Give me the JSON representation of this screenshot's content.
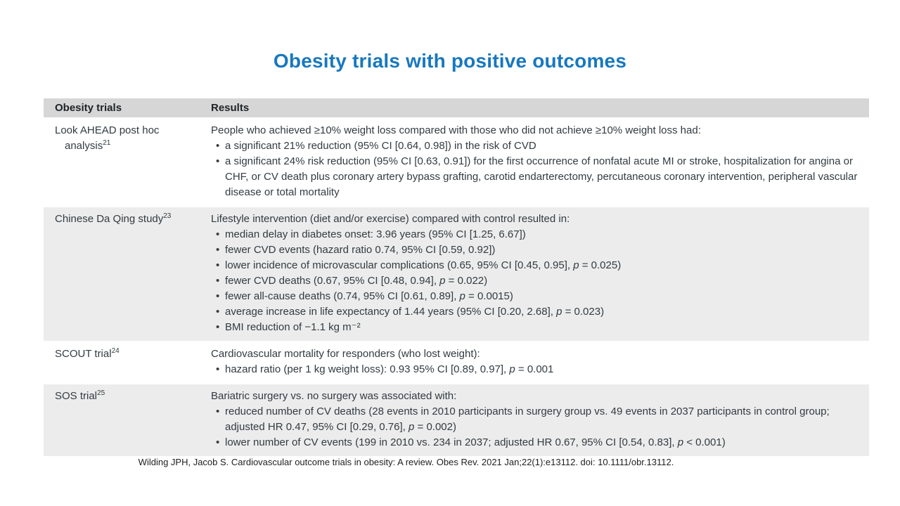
{
  "title": "Obesity trials with positive outcomes",
  "table": {
    "headers": [
      "Obesity trials",
      "Results"
    ],
    "rows": [
      {
        "trial_lines": [
          "Look AHEAD post hoc",
          "analysis"
        ],
        "trial_sup": "21",
        "shaded": false,
        "intro": "People who achieved ≥10% weight loss compared with those who did not achieve ≥10% weight loss had:",
        "bullets": [
          "a significant 21% reduction (95% CI [0.64, 0.98]) in the risk of CVD",
          "a significant 24% risk reduction (95% CI [0.63, 0.91]) for the first occurrence of nonfatal acute MI or stroke, hospitalization for angina or CHF, or CV death plus coronary artery bypass grafting, carotid endarterectomy, percutaneous coronary intervention, peripheral vascular disease or total mortality"
        ]
      },
      {
        "trial_lines": [
          "Chinese Da Qing study"
        ],
        "trial_sup": "23",
        "shaded": true,
        "intro": "Lifestyle intervention (diet and/or exercise) compared with control resulted in:",
        "bullets": [
          "median delay in diabetes onset: 3.96 years (95% CI [1.25, 6.67])",
          "fewer CVD events (hazard ratio 0.74, 95% CI [0.59, 0.92])",
          "lower incidence of microvascular complications (0.65, 95% CI [0.45, 0.95], p = 0.025)",
          "fewer CVD deaths (0.67, 95% CI [0.48, 0.94], p = 0.022)",
          "fewer all-cause deaths (0.74, 95% CI [0.61, 0.89], p = 0.0015)",
          "average increase in life expectancy of 1.44 years (95% CI [0.20, 2.68], p = 0.023)",
          "BMI reduction of −1.1 kg m⁻²"
        ]
      },
      {
        "trial_lines": [
          "SCOUT trial"
        ],
        "trial_sup": "24",
        "shaded": false,
        "intro": "Cardiovascular mortality for responders (who lost weight):",
        "bullets": [
          "hazard ratio (per 1 kg weight loss): 0.93 95% CI [0.89, 0.97], p = 0.001"
        ]
      },
      {
        "trial_lines": [
          "SOS trial"
        ],
        "trial_sup": "25",
        "shaded": true,
        "intro": "Bariatric surgery vs. no surgery was associated with:",
        "bullets": [
          "reduced number of CV deaths (28 events in 2010 participants in surgery group vs. 49 events in 2037 participants in control group; adjusted HR 0.47, 95% CI [0.29, 0.76], p = 0.002)",
          "lower number of CV events (199 in 2010 vs. 234 in 2037; adjusted HR 0.67, 95% CI [0.54, 0.83], p < 0.001)"
        ]
      }
    ]
  },
  "citation": "Wilding JPH, Jacob S. Cardiovascular outcome trials in obesity: A review. Obes Rev. 2021 Jan;22(1):e13112. doi: 10.1111/obr.13112.",
  "colors": {
    "title": "#1878BE",
    "header_bg": "#D6D6D6",
    "shaded_row_bg": "#ECECEC",
    "body_text": "#323B41",
    "citation_text": "#1E1E1E"
  }
}
